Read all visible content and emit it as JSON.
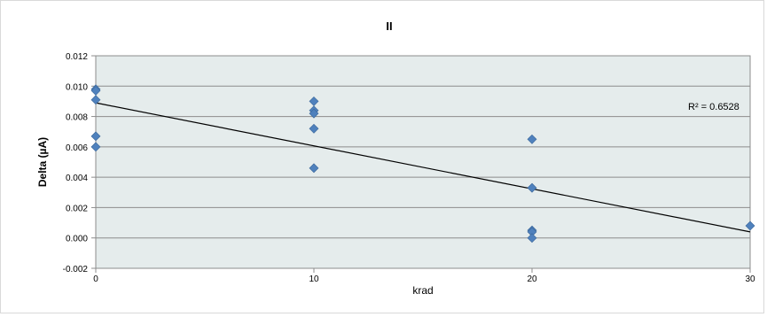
{
  "chart_data": {
    "type": "scatter",
    "title": "II",
    "xlabel": "krad",
    "ylabel": "Delta (µA)",
    "xlim": [
      0,
      30
    ],
    "ylim": [
      -0.002,
      0.012
    ],
    "x_ticks": [
      0,
      10,
      20,
      30
    ],
    "x_tick_labels": [
      "0",
      "10",
      "20",
      "30"
    ],
    "y_ticks": [
      -0.002,
      0,
      0.002,
      0.004,
      0.006,
      0.008,
      0.01,
      0.012
    ],
    "y_tick_labels": [
      "-0.002",
      "0.000",
      "0.002",
      "0.004",
      "0.006",
      "0.008",
      "0.010",
      "0.012"
    ],
    "grid": "horizontal",
    "plot_background": "#e5ecec",
    "marker_color": "#4f81bd",
    "marker_shape": "diamond",
    "points": [
      {
        "x": 0,
        "y": 0.0098
      },
      {
        "x": 0,
        "y": 0.0097
      },
      {
        "x": 0,
        "y": 0.0091
      },
      {
        "x": 0,
        "y": 0.0067
      },
      {
        "x": 0,
        "y": 0.006
      },
      {
        "x": 10,
        "y": 0.009
      },
      {
        "x": 10,
        "y": 0.0084
      },
      {
        "x": 10,
        "y": 0.0082
      },
      {
        "x": 10,
        "y": 0.0072
      },
      {
        "x": 10,
        "y": 0.0046
      },
      {
        "x": 20,
        "y": 0.0065
      },
      {
        "x": 20,
        "y": 0.0033
      },
      {
        "x": 20,
        "y": 0.0005
      },
      {
        "x": 20,
        "y": 0.0004
      },
      {
        "x": 20,
        "y": 0.0
      },
      {
        "x": 30,
        "y": 0.0008
      }
    ],
    "trendline": {
      "type": "linear",
      "x": [
        0,
        30
      ],
      "y": [
        0.0089,
        0.0004
      ],
      "color": "#000000",
      "r_squared_label": "R² = 0.6528"
    }
  }
}
